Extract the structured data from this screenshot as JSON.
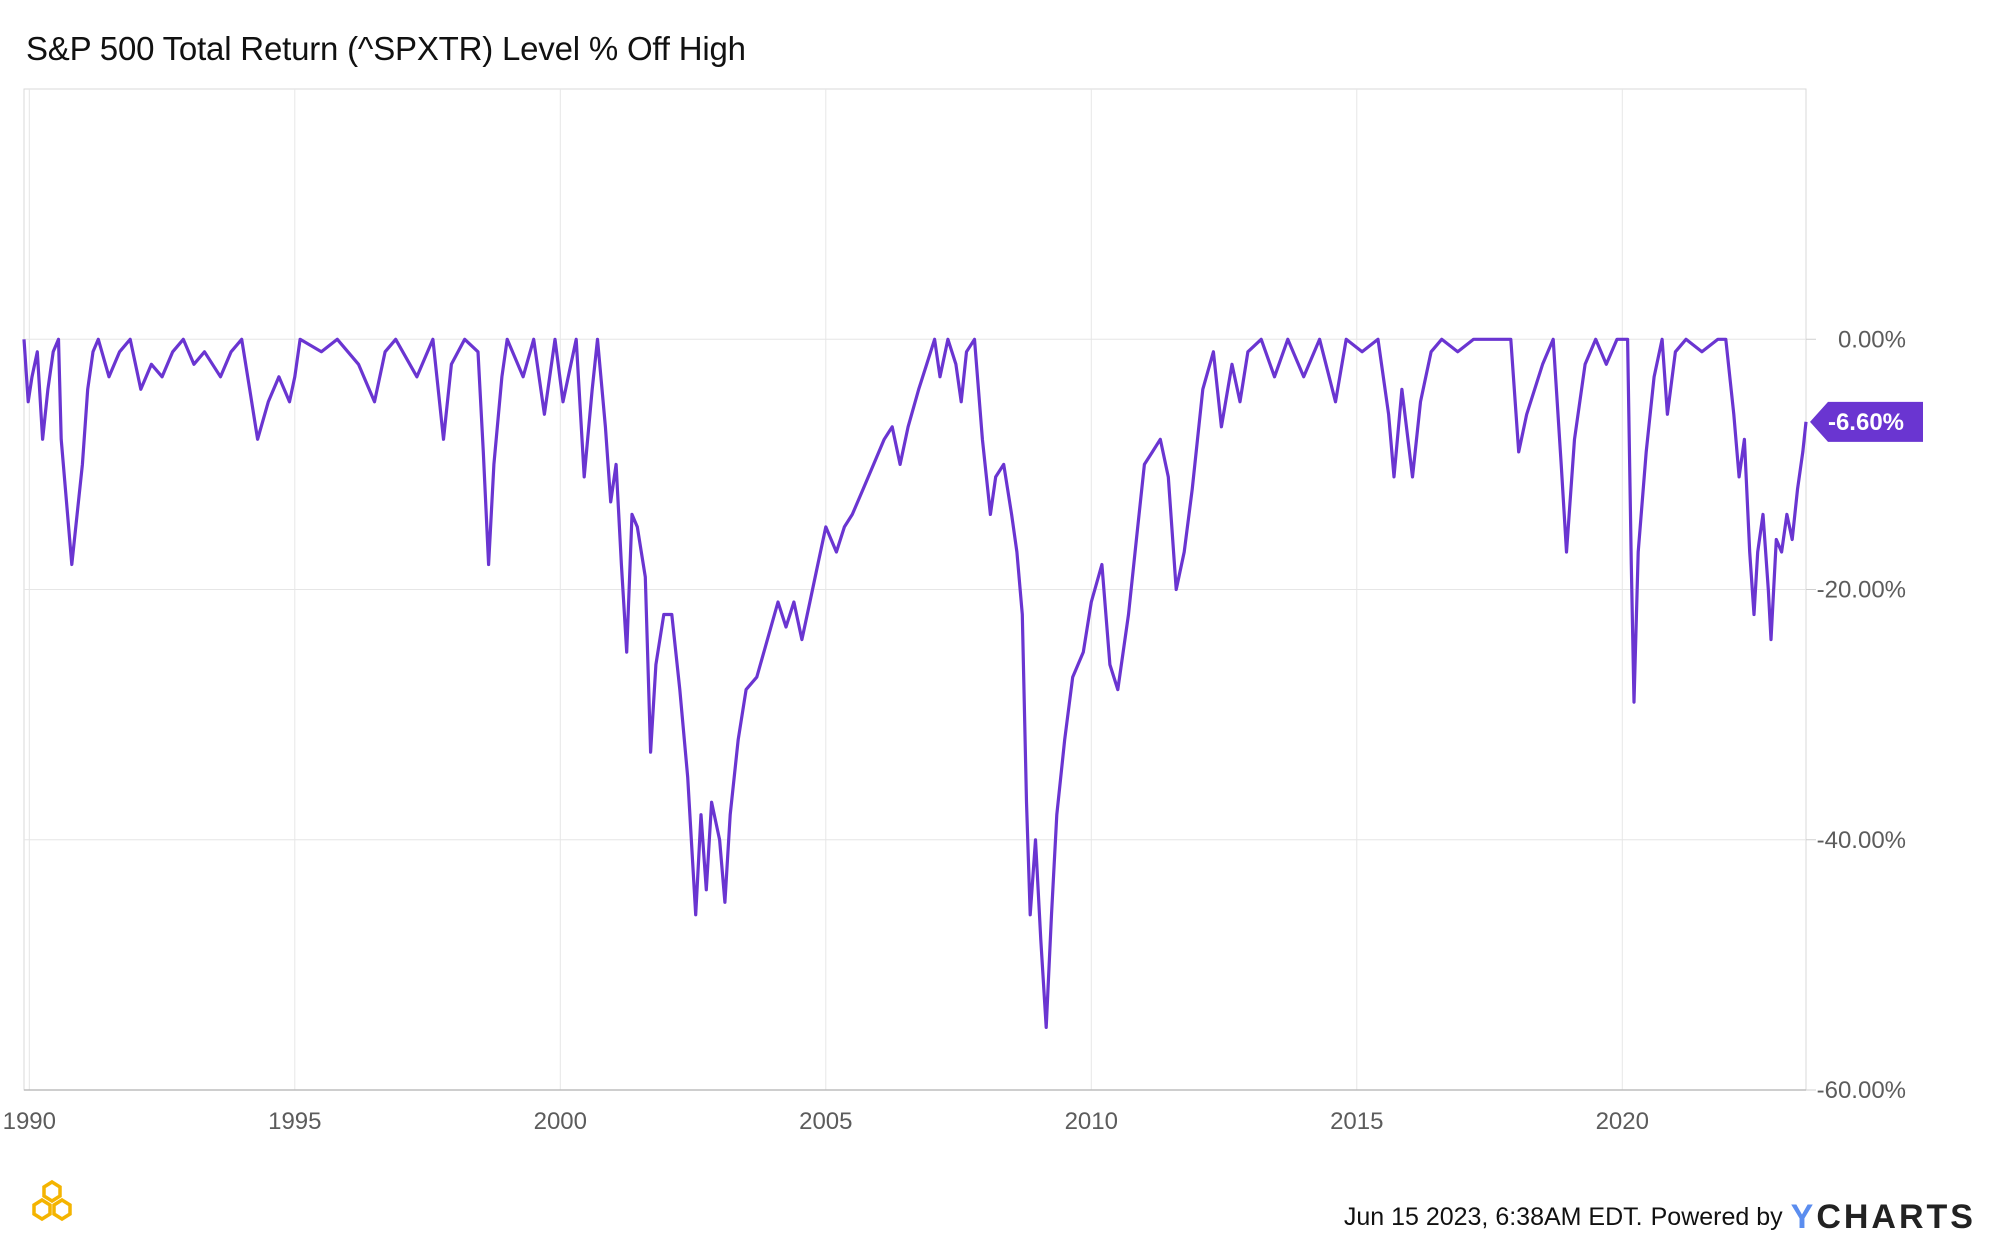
{
  "chart_data": {
    "type": "line",
    "title": "S&P 500 Total Return (^SPXTR) Level % Off High",
    "xlabel": "",
    "ylabel": "",
    "x_ticks": [
      "1990",
      "1995",
      "2000",
      "2005",
      "2010",
      "2015",
      "2020"
    ],
    "y_ticks": [
      "0.00%",
      "-20.00%",
      "-40.00%",
      "-60.00%"
    ],
    "ylim": [
      -60,
      20
    ],
    "xlim": [
      1989.9,
      2023.46
    ],
    "grid": true,
    "legend": "none",
    "last_value_label": "-6.60%",
    "series": [
      {
        "color": "#6a35d1",
        "points": [
          [
            1989.9,
            0
          ],
          [
            1989.98,
            -5
          ],
          [
            1990.05,
            -3
          ],
          [
            1990.15,
            -1
          ],
          [
            1990.25,
            -8
          ],
          [
            1990.35,
            -4
          ],
          [
            1990.45,
            -1
          ],
          [
            1990.55,
            0
          ],
          [
            1990.6,
            -8
          ],
          [
            1990.7,
            -13
          ],
          [
            1990.8,
            -18
          ],
          [
            1990.9,
            -14
          ],
          [
            1991.0,
            -10
          ],
          [
            1991.1,
            -4
          ],
          [
            1991.2,
            -1
          ],
          [
            1991.3,
            0
          ],
          [
            1991.5,
            -3
          ],
          [
            1991.7,
            -1
          ],
          [
            1991.9,
            0
          ],
          [
            1992.1,
            -4
          ],
          [
            1992.3,
            -2
          ],
          [
            1992.5,
            -3
          ],
          [
            1992.7,
            -1
          ],
          [
            1992.9,
            0
          ],
          [
            1993.1,
            -2
          ],
          [
            1993.3,
            -1
          ],
          [
            1993.6,
            -3
          ],
          [
            1993.8,
            -1
          ],
          [
            1994.0,
            0
          ],
          [
            1994.15,
            -4
          ],
          [
            1994.3,
            -8
          ],
          [
            1994.5,
            -5
          ],
          [
            1994.7,
            -3
          ],
          [
            1994.9,
            -5
          ],
          [
            1995.0,
            -3
          ],
          [
            1995.1,
            0
          ],
          [
            1995.5,
            -1
          ],
          [
            1995.8,
            0
          ],
          [
            1996.2,
            -2
          ],
          [
            1996.5,
            -5
          ],
          [
            1996.7,
            -1
          ],
          [
            1996.9,
            0
          ],
          [
            1997.3,
            -3
          ],
          [
            1997.6,
            0
          ],
          [
            1997.8,
            -8
          ],
          [
            1997.95,
            -2
          ],
          [
            1998.2,
            0
          ],
          [
            1998.45,
            -1
          ],
          [
            1998.55,
            -9
          ],
          [
            1998.65,
            -18
          ],
          [
            1998.75,
            -10
          ],
          [
            1998.9,
            -3
          ],
          [
            1999.0,
            0
          ],
          [
            1999.3,
            -3
          ],
          [
            1999.5,
            0
          ],
          [
            1999.7,
            -6
          ],
          [
            1999.9,
            0
          ],
          [
            2000.05,
            -5
          ],
          [
            2000.2,
            -2
          ],
          [
            2000.3,
            0
          ],
          [
            2000.45,
            -11
          ],
          [
            2000.6,
            -4
          ],
          [
            2000.7,
            0
          ],
          [
            2000.85,
            -7
          ],
          [
            2000.95,
            -13
          ],
          [
            2001.05,
            -10
          ],
          [
            2001.15,
            -18
          ],
          [
            2001.25,
            -25
          ],
          [
            2001.35,
            -14
          ],
          [
            2001.45,
            -15
          ],
          [
            2001.6,
            -19
          ],
          [
            2001.7,
            -33
          ],
          [
            2001.8,
            -26
          ],
          [
            2001.95,
            -22
          ],
          [
            2002.1,
            -22
          ],
          [
            2002.25,
            -28
          ],
          [
            2002.4,
            -35
          ],
          [
            2002.55,
            -46
          ],
          [
            2002.65,
            -38
          ],
          [
            2002.75,
            -44
          ],
          [
            2002.85,
            -37
          ],
          [
            2003.0,
            -40
          ],
          [
            2003.1,
            -45
          ],
          [
            2003.2,
            -38
          ],
          [
            2003.35,
            -32
          ],
          [
            2003.5,
            -28
          ],
          [
            2003.7,
            -27
          ],
          [
            2003.9,
            -24
          ],
          [
            2004.1,
            -21
          ],
          [
            2004.25,
            -23
          ],
          [
            2004.4,
            -21
          ],
          [
            2004.55,
            -24
          ],
          [
            2004.7,
            -21
          ],
          [
            2004.85,
            -18
          ],
          [
            2005.0,
            -15
          ],
          [
            2005.2,
            -17
          ],
          [
            2005.35,
            -15
          ],
          [
            2005.5,
            -14
          ],
          [
            2005.7,
            -12
          ],
          [
            2005.9,
            -10
          ],
          [
            2006.1,
            -8
          ],
          [
            2006.25,
            -7
          ],
          [
            2006.4,
            -10
          ],
          [
            2006.55,
            -7
          ],
          [
            2006.75,
            -4
          ],
          [
            2006.9,
            -2
          ],
          [
            2007.05,
            0
          ],
          [
            2007.15,
            -3
          ],
          [
            2007.3,
            0
          ],
          [
            2007.45,
            -2
          ],
          [
            2007.55,
            -5
          ],
          [
            2007.65,
            -1
          ],
          [
            2007.8,
            0
          ],
          [
            2007.95,
            -8
          ],
          [
            2008.1,
            -14
          ],
          [
            2008.2,
            -11
          ],
          [
            2008.35,
            -10
          ],
          [
            2008.5,
            -14
          ],
          [
            2008.6,
            -17
          ],
          [
            2008.7,
            -22
          ],
          [
            2008.78,
            -37
          ],
          [
            2008.85,
            -46
          ],
          [
            2008.95,
            -40
          ],
          [
            2009.05,
            -48
          ],
          [
            2009.15,
            -55
          ],
          [
            2009.25,
            -46
          ],
          [
            2009.35,
            -38
          ],
          [
            2009.5,
            -32
          ],
          [
            2009.65,
            -27
          ],
          [
            2009.85,
            -25
          ],
          [
            2010.0,
            -21
          ],
          [
            2010.2,
            -18
          ],
          [
            2010.35,
            -26
          ],
          [
            2010.5,
            -28
          ],
          [
            2010.7,
            -22
          ],
          [
            2010.85,
            -16
          ],
          [
            2011.0,
            -10
          ],
          [
            2011.15,
            -9
          ],
          [
            2011.3,
            -8
          ],
          [
            2011.45,
            -11
          ],
          [
            2011.6,
            -20
          ],
          [
            2011.75,
            -17
          ],
          [
            2011.9,
            -12
          ],
          [
            2012.1,
            -4
          ],
          [
            2012.3,
            -1
          ],
          [
            2012.45,
            -7
          ],
          [
            2012.65,
            -2
          ],
          [
            2012.8,
            -5
          ],
          [
            2012.95,
            -1
          ],
          [
            2013.2,
            0
          ],
          [
            2013.45,
            -3
          ],
          [
            2013.7,
            0
          ],
          [
            2014.0,
            -3
          ],
          [
            2014.3,
            0
          ],
          [
            2014.6,
            -5
          ],
          [
            2014.8,
            0
          ],
          [
            2015.1,
            -1
          ],
          [
            2015.4,
            0
          ],
          [
            2015.6,
            -6
          ],
          [
            2015.7,
            -11
          ],
          [
            2015.85,
            -4
          ],
          [
            2016.05,
            -11
          ],
          [
            2016.2,
            -5
          ],
          [
            2016.4,
            -1
          ],
          [
            2016.6,
            0
          ],
          [
            2016.9,
            -1
          ],
          [
            2017.2,
            0
          ],
          [
            2017.5,
            0
          ],
          [
            2017.9,
            0
          ],
          [
            2018.05,
            -9
          ],
          [
            2018.2,
            -6
          ],
          [
            2018.5,
            -2
          ],
          [
            2018.7,
            0
          ],
          [
            2018.85,
            -10
          ],
          [
            2018.95,
            -17
          ],
          [
            2019.1,
            -8
          ],
          [
            2019.3,
            -2
          ],
          [
            2019.5,
            0
          ],
          [
            2019.7,
            -2
          ],
          [
            2019.9,
            0
          ],
          [
            2020.1,
            0
          ],
          [
            2020.17,
            -18
          ],
          [
            2020.22,
            -29
          ],
          [
            2020.3,
            -17
          ],
          [
            2020.45,
            -9
          ],
          [
            2020.6,
            -3
          ],
          [
            2020.75,
            0
          ],
          [
            2020.85,
            -6
          ],
          [
            2021.0,
            -1
          ],
          [
            2021.2,
            0
          ],
          [
            2021.5,
            -1
          ],
          [
            2021.8,
            0
          ],
          [
            2021.95,
            0
          ],
          [
            2022.1,
            -6
          ],
          [
            2022.2,
            -11
          ],
          [
            2022.3,
            -8
          ],
          [
            2022.4,
            -17
          ],
          [
            2022.48,
            -22
          ],
          [
            2022.55,
            -17
          ],
          [
            2022.65,
            -14
          ],
          [
            2022.75,
            -20
          ],
          [
            2022.8,
            -24
          ],
          [
            2022.9,
            -16
          ],
          [
            2023.0,
            -17
          ],
          [
            2023.1,
            -14
          ],
          [
            2023.2,
            -16
          ],
          [
            2023.3,
            -12
          ],
          [
            2023.4,
            -9
          ],
          [
            2023.46,
            -6.6
          ]
        ]
      }
    ]
  },
  "footer": {
    "timestamp": "Jun 15 2023, 6:38AM EDT.",
    "powered_by": "Powered by",
    "brand_y": "Y",
    "brand_rest": "CHARTS"
  }
}
